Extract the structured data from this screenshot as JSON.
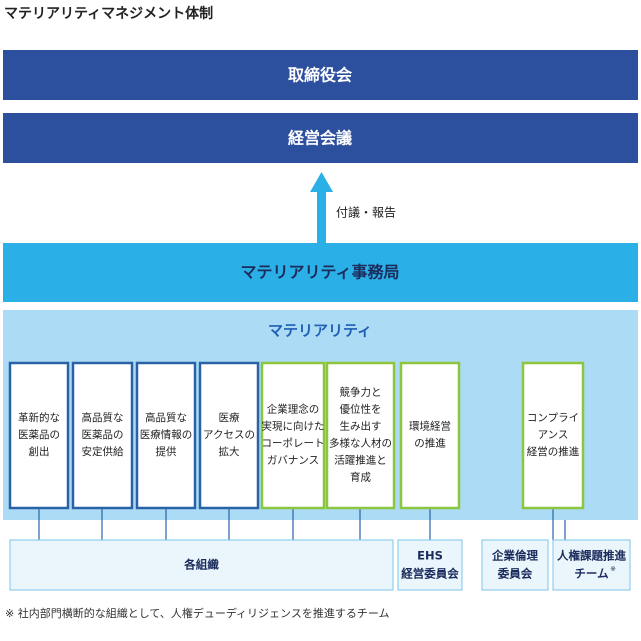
{
  "header": {
    "title": "マテリアリティマネジメント体制"
  },
  "board": "取締役会",
  "committee": "経営会議",
  "arrow_label": "付議・報告",
  "secretariat": "マテリアリティ事務局",
  "materiality": {
    "title": "マテリアリティ",
    "items": [
      {
        "lines": [
          "革新的な",
          "医薬品の",
          "創出"
        ]
      },
      {
        "lines": [
          "高品質な",
          "医薬品の",
          "安定供給"
        ]
      },
      {
        "lines": [
          "高品質な",
          "医療情報の",
          "提供"
        ]
      },
      {
        "lines": [
          "医療",
          "アクセスの",
          "拡大"
        ]
      },
      {
        "lines": [
          "企業理念の",
          "実現に向けた",
          "コーポレート",
          "ガバナンス"
        ]
      },
      {
        "lines": [
          "競争力と",
          "優位性を",
          "生み出す",
          "多様な人材の",
          "活躍推進と",
          "育成"
        ]
      },
      {
        "lines": [
          "環境経営",
          "の推進"
        ]
      },
      {
        "lines": [
          "コンプライ",
          "アンス",
          "経営の推進"
        ]
      }
    ]
  },
  "organizations": [
    {
      "lines": [
        "各組織"
      ]
    },
    {
      "lines": [
        "EHS",
        "経営委員会"
      ]
    },
    {
      "lines": [
        "企業倫理",
        "委員会"
      ]
    },
    {
      "lines": [
        "人権課題推進",
        "チーム"
      ],
      "note_mark": "※"
    }
  ],
  "footnote": "※ 社内部門横断的な組織として、人権デューディリジェンスを推進するチーム"
}
